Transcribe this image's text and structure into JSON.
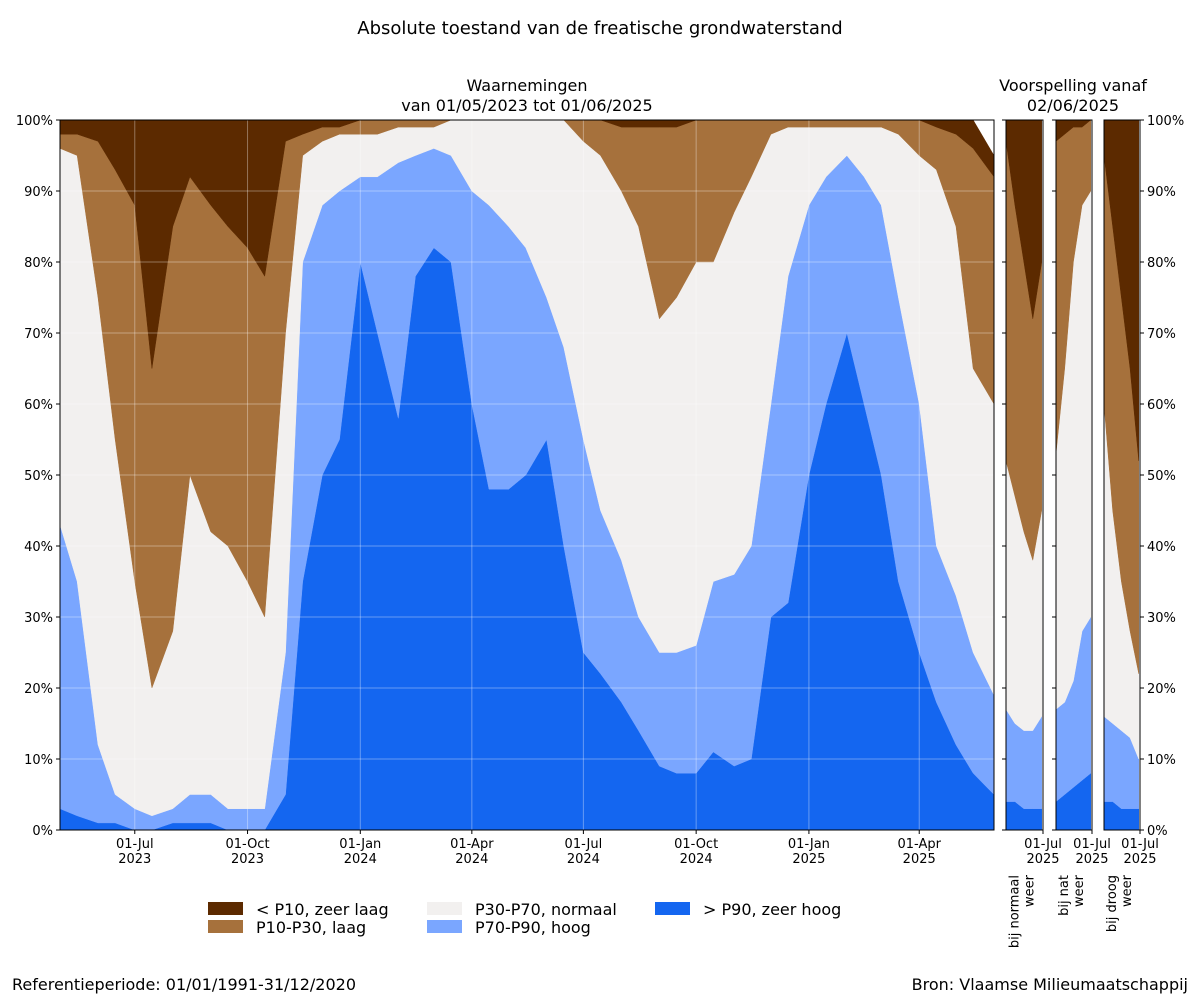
{
  "title": "Absolute toestand van de freatische grondwaterstand",
  "forecast_title": "Voorspelling vanaf",
  "forecast_subtitle": "02/06/2025",
  "footer_left": "Referentieperiode: 01/01/1991-31/12/2020",
  "footer_right": "Bron: Vlaamse Milieumaatschappij",
  "chart_data": [
    {
      "type": "stacked_area",
      "title": "Waarnemingen",
      "subtitle": "van 01/05/2023 tot 01/06/2025",
      "grid": true,
      "ytick_side": "left",
      "xlim": [
        "2023-05-01",
        "2025-06-01"
      ],
      "xticks": [
        {
          "value": "2023-07-01",
          "label": "01-Jul 2023"
        },
        {
          "value": "2023-10-01",
          "label": "01-Oct 2023"
        },
        {
          "value": "2024-01-01",
          "label": "01-Jan 2024"
        },
        {
          "value": "2024-04-01",
          "label": "01-Apr 2024"
        },
        {
          "value": "2024-07-01",
          "label": "01-Jul 2024"
        },
        {
          "value": "2024-10-01",
          "label": "01-Oct 2024"
        },
        {
          "value": "2025-01-01",
          "label": "01-Jan 2025"
        },
        {
          "value": "2025-04-01",
          "label": "01-Apr 2025"
        }
      ],
      "ylim": [
        0,
        100
      ],
      "yticks": [
        {
          "value": 0,
          "label": "0%"
        },
        {
          "value": 10,
          "label": "10%"
        },
        {
          "value": 20,
          "label": "20%"
        },
        {
          "value": 30,
          "label": "30%"
        },
        {
          "value": 40,
          "label": "40%"
        },
        {
          "value": 50,
          "label": "50%"
        },
        {
          "value": 60,
          "label": "60%"
        },
        {
          "value": 70,
          "label": "70%"
        },
        {
          "value": 80,
          "label": "80%"
        },
        {
          "value": 90,
          "label": "90%"
        },
        {
          "value": 100,
          "label": "100%"
        }
      ],
      "x": [
        "2023-05-01",
        "2023-05-15",
        "2023-06-01",
        "2023-06-15",
        "2023-07-01",
        "2023-07-15",
        "2023-08-01",
        "2023-08-15",
        "2023-09-01",
        "2023-09-15",
        "2023-10-01",
        "2023-10-15",
        "2023-11-01",
        "2023-11-15",
        "2023-12-01",
        "2023-12-15",
        "2024-01-01",
        "2024-01-15",
        "2024-02-01",
        "2024-02-15",
        "2024-03-01",
        "2024-03-15",
        "2024-04-01",
        "2024-04-15",
        "2024-05-01",
        "2024-05-15",
        "2024-06-01",
        "2024-06-15",
        "2024-07-01",
        "2024-07-15",
        "2024-08-01",
        "2024-08-15",
        "2024-09-01",
        "2024-09-15",
        "2024-10-01",
        "2024-10-15",
        "2024-11-01",
        "2024-11-15",
        "2024-12-01",
        "2024-12-15",
        "2025-01-01",
        "2025-01-15",
        "2025-02-01",
        "2025-02-15",
        "2025-03-01",
        "2025-03-15",
        "2025-04-01",
        "2025-04-15",
        "2025-05-01",
        "2025-05-15",
        "2025-06-01"
      ],
      "series": [
        {
          "name": "> P90, zeer hoog",
          "color": "#1466f0",
          "values": [
            3,
            2,
            1,
            1,
            0,
            0,
            1,
            1,
            1,
            0,
            0,
            0,
            5,
            35,
            50,
            55,
            80,
            70,
            58,
            78,
            82,
            80,
            60,
            48,
            48,
            50,
            55,
            40,
            25,
            22,
            18,
            14,
            9,
            8,
            8,
            11,
            9,
            10,
            30,
            32,
            50,
            60,
            70,
            60,
            50,
            35,
            25,
            18,
            12,
            8,
            5
          ]
        },
        {
          "name": "P70-P90, hoog",
          "color": "#7aa6ff",
          "values": [
            40,
            33,
            11,
            4,
            3,
            2,
            2,
            4,
            4,
            3,
            3,
            3,
            20,
            45,
            38,
            35,
            12,
            22,
            36,
            17,
            14,
            15,
            30,
            40,
            37,
            32,
            20,
            28,
            30,
            23,
            20,
            16,
            16,
            17,
            18,
            24,
            27,
            30,
            30,
            46,
            38,
            32,
            25,
            32,
            38,
            40,
            35,
            22,
            21,
            17,
            14
          ]
        },
        {
          "name": "P30-P70, normaal",
          "color": "#f2f0ef",
          "values": [
            53,
            60,
            63,
            50,
            32,
            18,
            25,
            45,
            37,
            37,
            32,
            27,
            45,
            15,
            9,
            8,
            6,
            6,
            5,
            4,
            3,
            5,
            10,
            12,
            15,
            18,
            25,
            32,
            42,
            50,
            52,
            55,
            47,
            50,
            54,
            45,
            51,
            52,
            38,
            21,
            11,
            7,
            4,
            7,
            11,
            23,
            35,
            53,
            52,
            40,
            41
          ]
        },
        {
          "name": "P10-P30, laag",
          "color": "#a6713c",
          "values": [
            2,
            3,
            22,
            38,
            53,
            45,
            57,
            42,
            46,
            45,
            47,
            48,
            27,
            3,
            2,
            1,
            2,
            2,
            1,
            1,
            1,
            0,
            0,
            0,
            0,
            0,
            0,
            0,
            3,
            5,
            9,
            14,
            27,
            24,
            20,
            20,
            13,
            8,
            2,
            1,
            1,
            1,
            1,
            1,
            1,
            2,
            5,
            6,
            13,
            31,
            32
          ]
        },
        {
          "name": "< P10, zeer laag",
          "color": "#5c2a00",
          "values": [
            2,
            2,
            3,
            7,
            12,
            35,
            15,
            8,
            12,
            15,
            18,
            22,
            3,
            2,
            1,
            1,
            0,
            0,
            0,
            0,
            0,
            0,
            0,
            0,
            0,
            0,
            0,
            0,
            0,
            0,
            1,
            1,
            1,
            1,
            0,
            0,
            0,
            0,
            0,
            0,
            0,
            0,
            0,
            0,
            0,
            0,
            0,
            1,
            2,
            4,
            3
          ]
        }
      ]
    },
    {
      "type": "stacked_area",
      "xlabel": "bij normaal weer",
      "xlim": [
        "2025-06-02",
        "2025-07-01"
      ],
      "xticks": [
        {
          "value": "2025-07-01",
          "label": "01-Jul 2025"
        }
      ],
      "ylim": [
        0,
        100
      ],
      "yticks": [
        0,
        10,
        20,
        30,
        40,
        50,
        60,
        70,
        80,
        90,
        100
      ],
      "x": [
        "2025-06-02",
        "2025-06-09",
        "2025-06-16",
        "2025-06-23",
        "2025-06-30"
      ],
      "series": [
        {
          "name": "> P90, zeer hoog",
          "color": "#1466f0",
          "values": [
            4,
            4,
            3,
            3,
            3
          ]
        },
        {
          "name": "P70-P90, hoog",
          "color": "#7aa6ff",
          "values": [
            13,
            11,
            11,
            11,
            13
          ]
        },
        {
          "name": "P30-P70, normaal",
          "color": "#f2f0ef",
          "values": [
            35,
            32,
            28,
            24,
            29
          ]
        },
        {
          "name": "P10-P30, laag",
          "color": "#a6713c",
          "values": [
            45,
            41,
            38,
            34,
            35
          ]
        },
        {
          "name": "< P10, zeer laag",
          "color": "#5c2a00",
          "values": [
            3,
            12,
            20,
            28,
            20
          ]
        }
      ]
    },
    {
      "type": "stacked_area",
      "xlabel": "bij nat weer",
      "xlim": [
        "2025-06-02",
        "2025-07-01"
      ],
      "xticks": [
        {
          "value": "2025-07-01",
          "label": "01-Jul 2025"
        }
      ],
      "ylim": [
        0,
        100
      ],
      "yticks": [
        0,
        10,
        20,
        30,
        40,
        50,
        60,
        70,
        80,
        90,
        100
      ],
      "x": [
        "2025-06-02",
        "2025-06-09",
        "2025-06-16",
        "2025-06-23",
        "2025-06-30"
      ],
      "series": [
        {
          "name": "> P90, zeer hoog",
          "color": "#1466f0",
          "values": [
            4,
            5,
            6,
            7,
            8
          ]
        },
        {
          "name": "P70-P90, hoog",
          "color": "#7aa6ff",
          "values": [
            13,
            13,
            15,
            21,
            22
          ]
        },
        {
          "name": "P30-P70, normaal",
          "color": "#f2f0ef",
          "values": [
            36,
            47,
            59,
            60,
            60
          ]
        },
        {
          "name": "P10-P30, laag",
          "color": "#a6713c",
          "values": [
            44,
            33,
            19,
            11,
            10
          ]
        },
        {
          "name": "< P10, zeer laag",
          "color": "#5c2a00",
          "values": [
            3,
            2,
            1,
            1,
            0
          ]
        }
      ]
    },
    {
      "type": "stacked_area",
      "xlabel": "bij droog weer",
      "ytick_side": "right",
      "xlim": [
        "2025-06-02",
        "2025-07-01"
      ],
      "xticks": [
        {
          "value": "2025-07-01",
          "label": "01-Jul 2025"
        }
      ],
      "ylim": [
        0,
        100
      ],
      "yticks": [
        {
          "value": 0,
          "label": "0%"
        },
        {
          "value": 10,
          "label": "10%"
        },
        {
          "value": 20,
          "label": "20%"
        },
        {
          "value": 30,
          "label": "30%"
        },
        {
          "value": 40,
          "label": "40%"
        },
        {
          "value": 50,
          "label": "50%"
        },
        {
          "value": 60,
          "label": "60%"
        },
        {
          "value": 70,
          "label": "70%"
        },
        {
          "value": 80,
          "label": "80%"
        },
        {
          "value": 90,
          "label": "90%"
        },
        {
          "value": 100,
          "label": "100%"
        }
      ],
      "x": [
        "2025-06-02",
        "2025-06-09",
        "2025-06-16",
        "2025-06-23",
        "2025-06-30"
      ],
      "series": [
        {
          "name": "> P90, zeer hoog",
          "color": "#1466f0",
          "values": [
            4,
            4,
            3,
            3,
            3
          ]
        },
        {
          "name": "P70-P90, hoog",
          "color": "#7aa6ff",
          "values": [
            12,
            11,
            11,
            10,
            7
          ]
        },
        {
          "name": "P30-P70, normaal",
          "color": "#f2f0ef",
          "values": [
            44,
            30,
            21,
            15,
            12
          ]
        },
        {
          "name": "P10-P30, laag",
          "color": "#a6713c",
          "values": [
            35,
            40,
            40,
            37,
            30
          ]
        },
        {
          "name": "< P10, zeer laag",
          "color": "#5c2a00",
          "values": [
            5,
            15,
            25,
            35,
            48
          ]
        }
      ]
    }
  ]
}
